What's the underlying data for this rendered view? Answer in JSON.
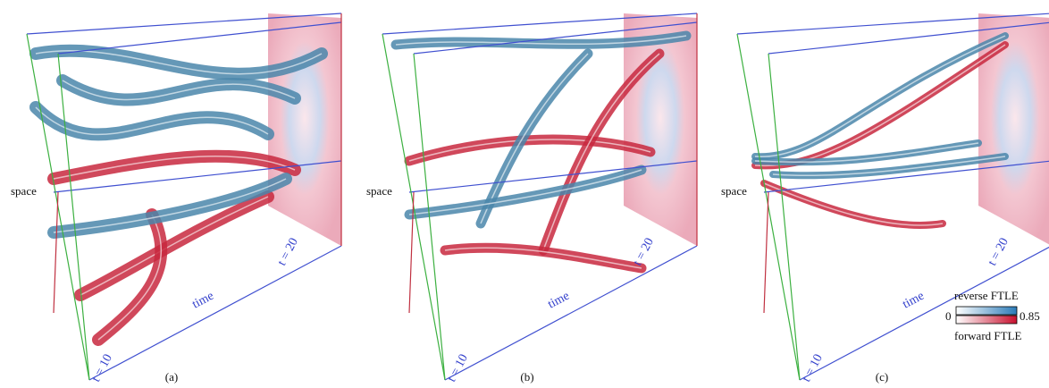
{
  "panels": [
    {
      "label": "(a)",
      "space": "space",
      "time": "time",
      "t_start": "t = 10",
      "t_end": "t = 20"
    },
    {
      "label": "(b)",
      "space": "space",
      "time": "time",
      "t_start": "t = 10",
      "t_end": "t = 20"
    },
    {
      "label": "(c)",
      "space": "space",
      "time": "time",
      "t_start": "t = 10",
      "t_end": "t = 20"
    }
  ],
  "legend": {
    "top": "reverse FTLE",
    "bottom": "forward FTLE",
    "min": 0,
    "max": 0.85
  }
}
